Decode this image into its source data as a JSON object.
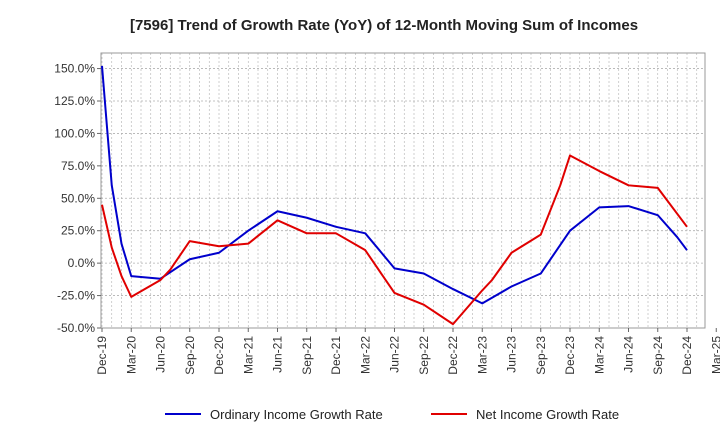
{
  "chart_data": {
    "type": "line",
    "title": "[7596]  Trend of Growth Rate (YoY) of 12-Month Moving Sum of Incomes",
    "xlabel": "",
    "ylabel": "",
    "ylim": [
      -50,
      162
    ],
    "grid": true,
    "legend_position": "bottom",
    "y_ticks": [
      {
        "value": 150,
        "label": "150.0%"
      },
      {
        "value": 125,
        "label": "125.0%"
      },
      {
        "value": 100,
        "label": "100.0%"
      },
      {
        "value": 75,
        "label": "75.0%"
      },
      {
        "value": 50,
        "label": "50.0%"
      },
      {
        "value": 25,
        "label": "25.0%"
      },
      {
        "value": 0,
        "label": "0.0%"
      },
      {
        "value": -25,
        "label": "-25.0%"
      },
      {
        "value": -50,
        "label": "-50.0%"
      }
    ],
    "x_ticks": [
      {
        "month": 0,
        "label": "Dec-19"
      },
      {
        "month": 3,
        "label": "Mar-20"
      },
      {
        "month": 6,
        "label": "Jun-20"
      },
      {
        "month": 9,
        "label": "Sep-20"
      },
      {
        "month": 12,
        "label": "Dec-20"
      },
      {
        "month": 15,
        "label": "Mar-21"
      },
      {
        "month": 18,
        "label": "Jun-21"
      },
      {
        "month": 21,
        "label": "Sep-21"
      },
      {
        "month": 24,
        "label": "Dec-21"
      },
      {
        "month": 27,
        "label": "Mar-22"
      },
      {
        "month": 30,
        "label": "Jun-22"
      },
      {
        "month": 33,
        "label": "Sep-22"
      },
      {
        "month": 36,
        "label": "Dec-22"
      },
      {
        "month": 39,
        "label": "Mar-23"
      },
      {
        "month": 42,
        "label": "Jun-23"
      },
      {
        "month": 45,
        "label": "Sep-23"
      },
      {
        "month": 48,
        "label": "Dec-23"
      },
      {
        "month": 51,
        "label": "Mar-24"
      },
      {
        "month": 54,
        "label": "Jun-24"
      },
      {
        "month": 57,
        "label": "Sep-24"
      },
      {
        "month": 60,
        "label": "Dec-24"
      },
      {
        "month": 63,
        "label": "Mar-25"
      }
    ],
    "series": [
      {
        "name": "Ordinary Income Growth Rate",
        "color": "#0000cc",
        "points": [
          [
            0,
            152
          ],
          [
            1,
            60
          ],
          [
            2,
            15
          ],
          [
            3,
            -10
          ],
          [
            6,
            -12
          ],
          [
            9,
            3
          ],
          [
            12,
            8
          ],
          [
            15,
            25
          ],
          [
            18,
            40
          ],
          [
            21,
            35
          ],
          [
            24,
            28
          ],
          [
            27,
            23
          ],
          [
            30,
            -4
          ],
          [
            33,
            -8
          ],
          [
            36,
            -20
          ],
          [
            39,
            -31
          ],
          [
            42,
            -18
          ],
          [
            45,
            -8
          ],
          [
            48,
            25
          ],
          [
            51,
            43
          ],
          [
            54,
            44
          ],
          [
            57,
            37
          ],
          [
            59,
            20
          ],
          [
            60,
            10
          ]
        ]
      },
      {
        "name": "Net Income Growth Rate",
        "color": "#e00000",
        "points": [
          [
            0,
            45
          ],
          [
            1,
            12
          ],
          [
            2,
            -10
          ],
          [
            3,
            -26
          ],
          [
            6,
            -13
          ],
          [
            7,
            -5
          ],
          [
            9,
            17
          ],
          [
            12,
            13
          ],
          [
            15,
            15
          ],
          [
            18,
            33
          ],
          [
            21,
            23
          ],
          [
            24,
            23
          ],
          [
            27,
            10
          ],
          [
            30,
            -23
          ],
          [
            33,
            -32
          ],
          [
            36,
            -47
          ],
          [
            39,
            -21
          ],
          [
            40,
            -13
          ],
          [
            42,
            8
          ],
          [
            45,
            22
          ],
          [
            47,
            60
          ],
          [
            48,
            83
          ],
          [
            51,
            71
          ],
          [
            54,
            60
          ],
          [
            57,
            58
          ],
          [
            60,
            28
          ]
        ]
      }
    ]
  }
}
